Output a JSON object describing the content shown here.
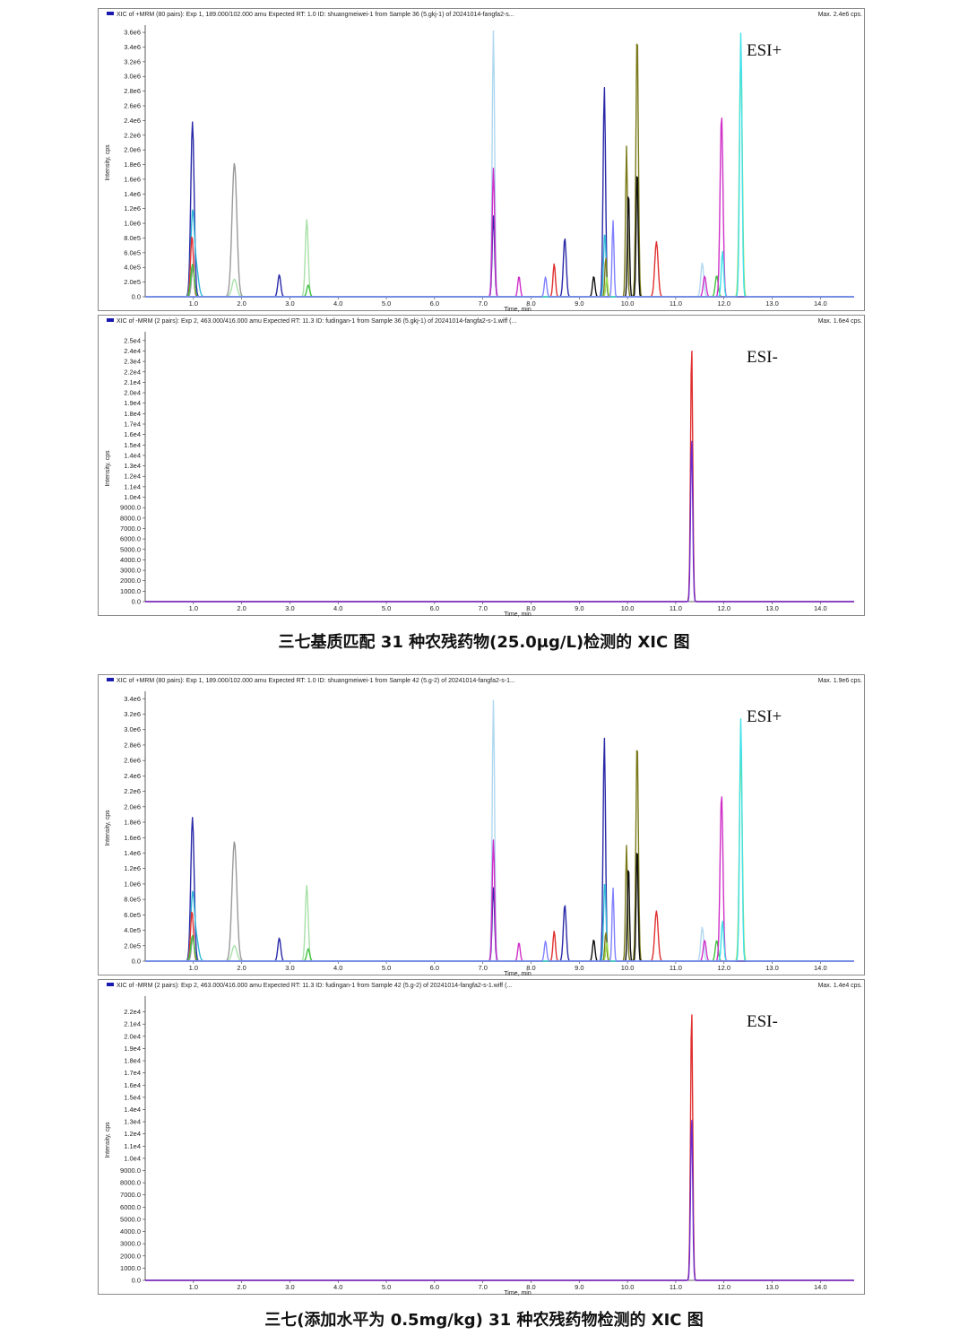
{
  "figures": [
    {
      "caption": "三七基质匹配 31 种农残药物(25.0μg/L)检测的 XIC 图",
      "panels": [
        {
          "header": "XIC of +MRM (80 pairs): Exp 1, 189.000/102.000 amu Expected RT: 1.0 ID: shuangmeiwei-1 from Sample 36 (5.gkj-1) of 20241014-fangfa2-s...",
          "max_label": "Max. 2.4e6 cps.",
          "esi_label": "ESI+",
          "ylabel": "Intensity, cps",
          "xlabel": "Time, min"
        },
        {
          "header": "XIC of -MRM (2 pairs): Exp 2, 463.000/416.000 amu Expected RT: 11.3 ID: fudingan-1 from Sample 36 (5.gkj-1) of 20241014-fangfa2-s-1.wiff (...",
          "max_label": "Max. 1.6e4 cps.",
          "esi_label": "ESI-",
          "ylabel": "Intensity, cps",
          "xlabel": "Time, min"
        }
      ]
    },
    {
      "caption": "三七(添加水平为 0.5mg/kg) 31 种农残药物检测的 XIC 图",
      "panels": [
        {
          "header": "XIC of +MRM (80 pairs): Exp 1, 189.000/102.000 amu Expected RT: 1.0 ID: shuangmeiwei-1 from Sample 42 (5.g-2) of 20241014-fangfa2-s-1...",
          "max_label": "Max. 1.9e6 cps.",
          "esi_label": "ESI+",
          "ylabel": "Intensity, cps",
          "xlabel": "Time, min"
        },
        {
          "header": "XIC of -MRM (2 pairs): Exp 2, 463.000/416.000 amu Expected RT: 11.3 ID: fudingan-1 from Sample 42 (5.g-2) of 20241014-fangfa2-s-1.wiff (...",
          "max_label": "Max. 1.4e4 cps.",
          "esi_label": "ESI-",
          "ylabel": "Intensity, cps",
          "xlabel": "Time, min"
        }
      ]
    }
  ],
  "chart_data": [
    {
      "type": "line",
      "title": "XIC of +MRM (80 pairs) Sample 36",
      "xlabel": "Time, min",
      "ylabel": "Intensity, cps",
      "xlim": [
        0,
        14.7
      ],
      "ylim": [
        0,
        3650000.0
      ],
      "x_ticks": [
        "1.0",
        "2.0",
        "3.0",
        "4.0",
        "5.0",
        "6.0",
        "7.0",
        "8.0",
        "9.0",
        "10.0",
        "11.0",
        "12.0",
        "13.0",
        "14.0"
      ],
      "y_ticks": [
        "0.0",
        "2.0e5",
        "4.0e5",
        "6.0e5",
        "8.0e5",
        "1.0e6",
        "1.2e6",
        "1.4e6",
        "1.6e6",
        "1.8e6",
        "2.0e6",
        "2.2e6",
        "2.4e6",
        "2.6e6",
        "2.8e6",
        "3.0e6",
        "3.2e6",
        "3.4e6",
        "3.6e6"
      ],
      "y_tick_values": [
        0,
        200000.0,
        400000.0,
        600000.0,
        800000.0,
        1000000.0,
        1200000.0,
        1400000.0,
        1600000.0,
        1800000.0,
        2000000.0,
        2200000.0,
        2400000.0,
        2600000.0,
        2800000.0,
        3000000.0,
        3200000.0,
        3400000.0,
        3600000.0
      ],
      "series": [
        {
          "color": "#2a2aa8",
          "peaks": [
            [
              0.98,
              2380000.0,
              0.035
            ],
            [
              2.78,
              300000.0,
              0.03
            ],
            [
              7.22,
              1100000.0,
              0.025
            ],
            [
              8.7,
              800000.0,
              0.03
            ],
            [
              9.52,
              2860000.0,
              0.025
            ]
          ]
        },
        {
          "color": "#9a9a9a",
          "peaks": [
            [
              1.85,
              1820000.0,
              0.05
            ],
            [
              0.99,
              400000.0,
              0.03
            ]
          ]
        },
        {
          "color": "#32b8d8",
          "peaks": [
            [
              0.98,
              1020000.0,
              0.035
            ],
            [
              1.05,
              430000.0,
              0.05
            ],
            [
              9.53,
              880000.0,
              0.025
            ]
          ]
        },
        {
          "color": "#e03030",
          "peaks": [
            [
              0.97,
              830000.0,
              0.03
            ],
            [
              8.48,
              450000.0,
              0.025
            ],
            [
              10.6,
              750000.0,
              0.035
            ]
          ]
        },
        {
          "color": "#a8e0a8",
          "peaks": [
            [
              3.35,
              1050000.0,
              0.03
            ],
            [
              1.85,
              240000.0,
              0.05
            ]
          ]
        },
        {
          "color": "#40c040",
          "peaks": [
            [
              3.38,
              160000.0,
              0.03
            ],
            [
              0.98,
              440000.0,
              0.035
            ],
            [
              11.85,
              290000.0,
              0.03
            ]
          ]
        },
        {
          "color": "#b0d8f0",
          "peaks": [
            [
              7.22,
              3620000.0,
              0.025
            ],
            [
              11.55,
              460000.0,
              0.03
            ]
          ]
        },
        {
          "color": "#d030c8",
          "peaks": [
            [
              7.22,
              1750000.0,
              0.025
            ],
            [
              7.75,
              280000.0,
              0.025
            ],
            [
              11.95,
              2480000.0,
              0.03
            ],
            [
              11.6,
              280000.0,
              0.03
            ]
          ]
        },
        {
          "color": "#7a7a1a",
          "peaks": [
            [
              10.2,
              3620000.0,
              0.025
            ],
            [
              9.98,
              2050000.0,
              0.02
            ],
            [
              9.55,
              540000.0,
              0.02
            ]
          ]
        },
        {
          "color": "#111111",
          "peaks": [
            [
              10.2,
              1770000.0,
              0.02
            ],
            [
              10.02,
              1460000.0,
              0.02
            ],
            [
              9.3,
              280000.0,
              0.025
            ]
          ]
        },
        {
          "color": "#a0e050",
          "peaks": [
            [
              12.35,
              3270000.0,
              0.03
            ],
            [
              9.57,
              260000.0,
              0.02
            ]
          ]
        },
        {
          "color": "#40e0e8",
          "peaks": [
            [
              12.35,
              3600000.0,
              0.025
            ],
            [
              11.97,
              620000.0,
              0.025
            ]
          ]
        },
        {
          "color": "#8080ff",
          "peaks": [
            [
              9.7,
              1040000.0,
              0.02
            ],
            [
              8.3,
              270000.0,
              0.025
            ]
          ]
        }
      ]
    },
    {
      "type": "line",
      "title": "XIC of -MRM (2 pairs) Sample 36",
      "xlabel": "Time, min",
      "ylabel": "Intensity, cps",
      "xlim": [
        0,
        14.7
      ],
      "ylim": [
        0,
        25500.0
      ],
      "x_ticks": [
        "1.0",
        "2.0",
        "3.0",
        "4.0",
        "5.0",
        "6.0",
        "7.0",
        "8.0",
        "9.0",
        "10.0",
        "11.0",
        "12.0",
        "13.0",
        "14.0"
      ],
      "y_ticks": [
        "0.0",
        "1000.0",
        "2000.0",
        "3000.0",
        "4000.0",
        "5000.0",
        "6000.0",
        "7000.0",
        "8000.0",
        "9000.0",
        "1.0e4",
        "1.1e4",
        "1.2e4",
        "1.3e4",
        "1.4e4",
        "1.5e4",
        "1.6e4",
        "1.7e4",
        "1.8e4",
        "1.9e4",
        "2.0e4",
        "2.1e4",
        "2.2e4",
        "2.3e4",
        "2.4e4",
        "2.5e4"
      ],
      "y_tick_values": [
        0,
        1000,
        2000,
        3000,
        4000,
        5000,
        6000,
        7000,
        8000,
        9000,
        10000.0,
        11000.0,
        12000.0,
        13000.0,
        14000.0,
        15000.0,
        16000.0,
        17000.0,
        18000.0,
        19000.0,
        20000.0,
        21000.0,
        22000.0,
        23000.0,
        24000.0,
        25000.0
      ],
      "series": [
        {
          "color": "#e03030",
          "peaks": [
            [
              11.33,
              24700.0,
              0.022
            ]
          ]
        },
        {
          "color": "#6a2ad0",
          "peaks": [
            [
              11.33,
              15800.0,
              0.022
            ]
          ]
        }
      ]
    },
    {
      "type": "line",
      "title": "XIC of +MRM (80 pairs) Sample 42",
      "xlabel": "Time, min",
      "ylabel": "Intensity, cps",
      "xlim": [
        0,
        14.7
      ],
      "ylim": [
        0,
        3450000.0
      ],
      "x_ticks": [
        "1.0",
        "2.0",
        "3.0",
        "4.0",
        "5.0",
        "6.0",
        "7.0",
        "8.0",
        "9.0",
        "10.0",
        "11.0",
        "12.0",
        "13.0",
        "14.0"
      ],
      "y_ticks": [
        "0.0",
        "2.0e5",
        "4.0e5",
        "6.0e5",
        "8.0e5",
        "1.0e6",
        "1.2e6",
        "1.4e6",
        "1.6e6",
        "1.8e6",
        "2.0e6",
        "2.2e6",
        "2.4e6",
        "2.6e6",
        "2.8e6",
        "3.0e6",
        "3.2e6",
        "3.4e6"
      ],
      "y_tick_values": [
        0,
        200000.0,
        400000.0,
        600000.0,
        800000.0,
        1000000.0,
        1200000.0,
        1400000.0,
        1600000.0,
        1800000.0,
        2000000.0,
        2200000.0,
        2400000.0,
        2600000.0,
        2800000.0,
        3000000.0,
        3200000.0,
        3400000.0
      ],
      "series": [
        {
          "color": "#2a2aa8",
          "peaks": [
            [
              0.98,
              1860000.0,
              0.035
            ],
            [
              2.78,
              300000.0,
              0.03
            ],
            [
              7.22,
              950000.0,
              0.025
            ],
            [
              8.7,
              730000.0,
              0.03
            ],
            [
              9.52,
              2900000.0,
              0.025
            ]
          ]
        },
        {
          "color": "#9a9a9a",
          "peaks": [
            [
              1.85,
              1550000.0,
              0.05
            ],
            [
              0.99,
              320000.0,
              0.03
            ]
          ]
        },
        {
          "color": "#32b8d8",
          "peaks": [
            [
              0.98,
              780000.0,
              0.035
            ],
            [
              1.05,
              330000.0,
              0.05
            ],
            [
              9.53,
              1040000.0,
              0.025
            ]
          ]
        },
        {
          "color": "#e03030",
          "peaks": [
            [
              0.97,
              650000.0,
              0.03
            ],
            [
              8.48,
              390000.0,
              0.025
            ],
            [
              10.6,
              650000.0,
              0.035
            ]
          ]
        },
        {
          "color": "#a8e0a8",
          "peaks": [
            [
              3.35,
              980000.0,
              0.03
            ],
            [
              1.85,
              200000.0,
              0.05
            ]
          ]
        },
        {
          "color": "#40c040",
          "peaks": [
            [
              3.38,
              160000.0,
              0.03
            ],
            [
              0.98,
              330000.0,
              0.035
            ],
            [
              11.85,
              270000.0,
              0.03
            ]
          ]
        },
        {
          "color": "#b0d8f0",
          "peaks": [
            [
              7.22,
              3380000.0,
              0.025
            ],
            [
              11.55,
              440000.0,
              0.03
            ]
          ]
        },
        {
          "color": "#d030c8",
          "peaks": [
            [
              7.22,
              1570000.0,
              0.025
            ],
            [
              7.75,
              240000.0,
              0.025
            ],
            [
              11.95,
              2170000.0,
              0.03
            ],
            [
              11.6,
              270000.0,
              0.03
            ]
          ]
        },
        {
          "color": "#7a7a1a",
          "peaks": [
            [
              10.2,
              2870000.0,
              0.025
            ],
            [
              9.98,
              1500000.0,
              0.02
            ],
            [
              9.55,
              380000.0,
              0.02
            ]
          ]
        },
        {
          "color": "#111111",
          "peaks": [
            [
              10.2,
              1510000.0,
              0.02
            ],
            [
              10.02,
              1260000.0,
              0.02
            ],
            [
              9.3,
              280000.0,
              0.025
            ]
          ]
        },
        {
          "color": "#a0e050",
          "peaks": [
            [
              12.35,
              2700000.0,
              0.03
            ],
            [
              9.57,
              240000.0,
              0.02
            ]
          ]
        },
        {
          "color": "#40e0e8",
          "peaks": [
            [
              12.35,
              3150000.0,
              0.025
            ],
            [
              11.97,
              520000.0,
              0.025
            ]
          ]
        },
        {
          "color": "#8080ff",
          "peaks": [
            [
              9.7,
              950000.0,
              0.02
            ],
            [
              8.3,
              260000.0,
              0.025
            ]
          ]
        }
      ]
    },
    {
      "type": "line",
      "title": "XIC of -MRM (2 pairs) Sample 42",
      "xlabel": "Time, min",
      "ylabel": "Intensity, cps",
      "xlim": [
        0,
        14.7
      ],
      "ylim": [
        0,
        23000.0
      ],
      "x_ticks": [
        "1.0",
        "2.0",
        "3.0",
        "4.0",
        "5.0",
        "6.0",
        "7.0",
        "8.0",
        "9.0",
        "10.0",
        "11.0",
        "12.0",
        "13.0",
        "14.0"
      ],
      "y_ticks": [
        "0.0",
        "1000.0",
        "2000.0",
        "3000.0",
        "4000.0",
        "5000.0",
        "6000.0",
        "7000.0",
        "8000.0",
        "9000.0",
        "1.0e4",
        "1.1e4",
        "1.2e4",
        "1.3e4",
        "1.4e4",
        "1.5e4",
        "1.6e4",
        "1.7e4",
        "1.8e4",
        "1.9e4",
        "2.0e4",
        "2.1e4",
        "2.2e4"
      ],
      "y_tick_values": [
        0,
        1000,
        2000,
        3000,
        4000,
        5000,
        6000,
        7000,
        8000,
        9000,
        10000.0,
        11000.0,
        12000.0,
        13000.0,
        14000.0,
        15000.0,
        16000.0,
        17000.0,
        18000.0,
        19000.0,
        20000.0,
        21000.0,
        22000.0
      ],
      "series": [
        {
          "color": "#e03030",
          "peaks": [
            [
              11.33,
              22400.0,
              0.022
            ]
          ]
        },
        {
          "color": "#6a2ad0",
          "peaks": [
            [
              11.33,
              13500.0,
              0.022
            ]
          ]
        }
      ]
    }
  ]
}
